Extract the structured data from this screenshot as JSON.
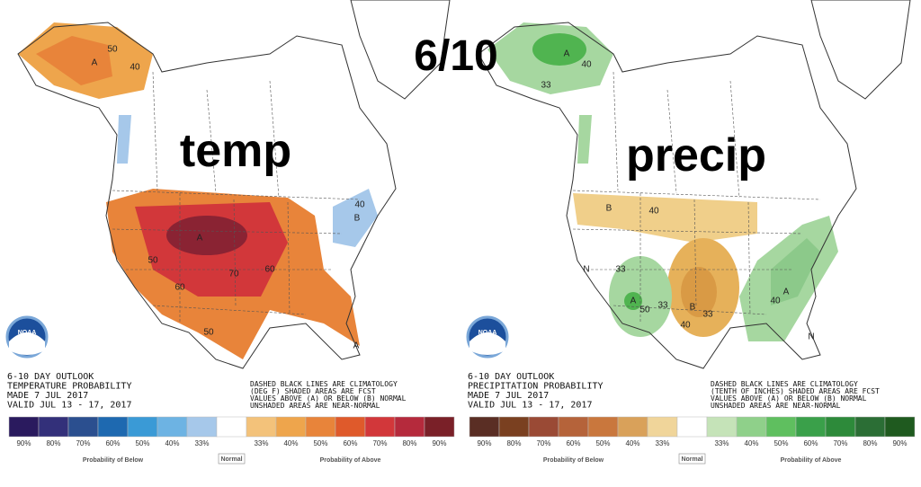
{
  "title": "6/10",
  "panels": [
    {
      "heading": "temp",
      "outlook": [
        "6-10 DAY OUTLOOK",
        "TEMPERATURE PROBABILITY",
        "MADE  7 JUL 2017",
        "VALID  JUL 13 - 17, 2017"
      ],
      "notes": [
        "DASHED BLACK LINES ARE CLIMATOLOGY",
        "(DEG F) SHADED AREAS ARE FCST",
        "VALUES ABOVE (A) OR BELOW (B) NORMAL",
        "UNSHADED AREAS ARE NEAR-NORMAL"
      ],
      "logo": "NOAA",
      "map_labels": [
        "A",
        "50",
        "40",
        "A",
        "50",
        "60",
        "70",
        "60",
        "B",
        "40",
        "50",
        "A"
      ],
      "legend": {
        "swatches": [
          {
            "label": "90%",
            "color": "#2a1a5e"
          },
          {
            "label": "80%",
            "color": "#33307a"
          },
          {
            "label": "70%",
            "color": "#2b4f8f"
          },
          {
            "label": "60%",
            "color": "#1e69b0"
          },
          {
            "label": "50%",
            "color": "#3a9ad6"
          },
          {
            "label": "40%",
            "color": "#6db3e3"
          },
          {
            "label": "33%",
            "color": "#a6c8ea"
          },
          {
            "color": "#ffffff"
          },
          {
            "label": "33%",
            "color": "#f3c27a"
          },
          {
            "label": "40%",
            "color": "#eea54c"
          },
          {
            "label": "50%",
            "color": "#e8843a"
          },
          {
            "label": "60%",
            "color": "#df5a2b"
          },
          {
            "label": "70%",
            "color": "#d2373a"
          },
          {
            "label": "80%",
            "color": "#b52a3c"
          },
          {
            "label": "90%",
            "color": "#7a2028"
          }
        ],
        "below": "Probability of Below",
        "normal": "Normal",
        "above": "Probability of Above"
      }
    },
    {
      "heading": "precip",
      "outlook": [
        "6-10 DAY OUTLOOK",
        "PRECIPITATION PROBABILITY",
        "MADE  7 JUL 2017",
        "VALID  JUL 13 - 17, 2017"
      ],
      "notes": [
        "DASHED BLACK LINES ARE CLIMATOLOGY",
        "(TENTH OF INCHES) SHADED AREAS ARE FCST",
        "VALUES ABOVE (A) OR BELOW (B) NORMAL",
        "UNSHADED AREAS ARE NEAR-NORMAL"
      ],
      "logo": "NOAA",
      "map_labels": [
        "A",
        "40",
        "33",
        "B",
        "40",
        "N",
        "33",
        "A",
        "50",
        "33",
        "B",
        "40",
        "33",
        "A",
        "40",
        "N"
      ],
      "legend": {
        "swatches": [
          {
            "label": "90%",
            "color": "#5a2e24"
          },
          {
            "label": "80%",
            "color": "#7a4020"
          },
          {
            "label": "70%",
            "color": "#9a4a35"
          },
          {
            "label": "60%",
            "color": "#b5633a"
          },
          {
            "label": "50%",
            "color": "#c9773d"
          },
          {
            "label": "40%",
            "color": "#d9a15a"
          },
          {
            "label": "33%",
            "color": "#f0d59a"
          },
          {
            "color": "#ffffff"
          },
          {
            "label": "33%",
            "color": "#c5e3b8"
          },
          {
            "label": "40%",
            "color": "#8fd08a"
          },
          {
            "label": "50%",
            "color": "#5fbf5f"
          },
          {
            "label": "60%",
            "color": "#3aa04a"
          },
          {
            "label": "70%",
            "color": "#2d8a3a"
          },
          {
            "label": "80%",
            "color": "#2b6e35"
          },
          {
            "label": "90%",
            "color": "#1f5a1f"
          }
        ],
        "below": "Probability of Below",
        "normal": "Normal",
        "above": "Probability of Above"
      }
    }
  ]
}
